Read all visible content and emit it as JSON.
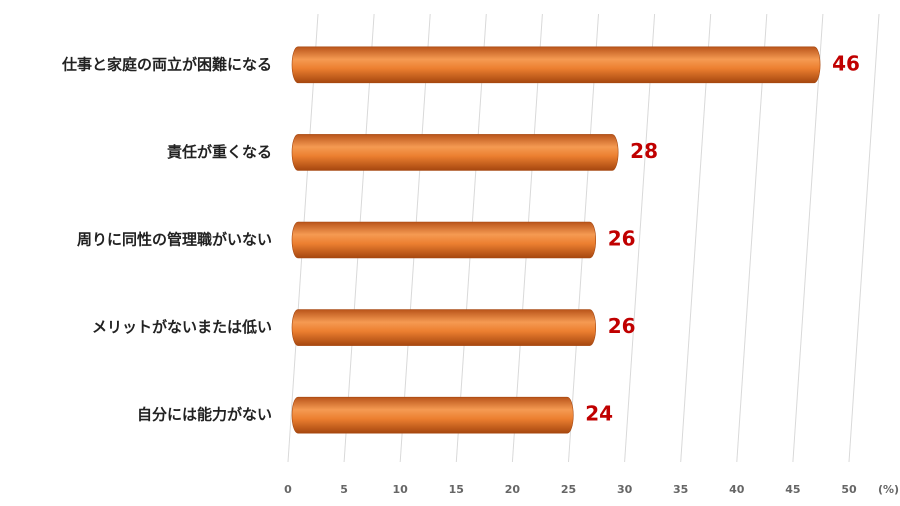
{
  "chart_data": {
    "type": "bar",
    "orientation": "horizontal",
    "categories": [
      "仕事と家庭の両立が困難になる",
      "責任が重くなる",
      "周りに同性の管理職がいない",
      "メリットがないまたは低い",
      "自分には能力がない"
    ],
    "values": [
      46,
      28,
      26,
      26,
      24
    ],
    "color": "#e8782a",
    "value_color": "#c00000",
    "xlim": [
      0,
      50
    ],
    "xticks": [
      0,
      5,
      10,
      15,
      20,
      25,
      30,
      35,
      40,
      45,
      50
    ],
    "unit": "(%)",
    "grid": true
  }
}
